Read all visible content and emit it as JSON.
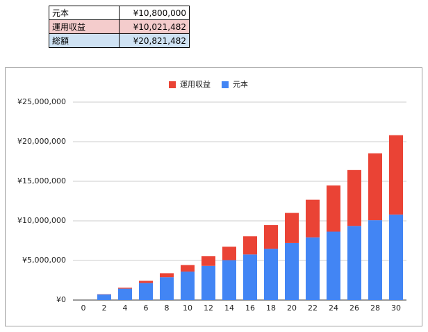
{
  "table": {
    "rows": [
      [
        "元本",
        "¥10,800,000"
      ],
      [
        "運用収益",
        "¥10,021,482"
      ],
      [
        "総額",
        "¥20,821,482"
      ]
    ]
  },
  "chart_data": {
    "type": "stacked_bar",
    "categories": [
      "0",
      "2",
      "4",
      "6",
      "8",
      "10",
      "12",
      "14",
      "16",
      "18",
      "20",
      "22",
      "24",
      "26",
      "28",
      "30"
    ],
    "series": [
      {
        "name": "運用収益",
        "color": "#ea4335",
        "values": [
          0,
          28290,
          118800,
          276700,
          507500,
          817500,
          1213100,
          1701500,
          2290300,
          2987800,
          3803200,
          4746700,
          5828100,
          7059000,
          8452400,
          10021482
        ]
      },
      {
        "name": "元本",
        "color": "#4285f4",
        "values": [
          0,
          720000,
          1440000,
          2160000,
          2880000,
          3600000,
          4320000,
          5040000,
          5760000,
          6480000,
          7200000,
          7920000,
          8640000,
          9360000,
          10080000,
          10800000
        ]
      }
    ],
    "ylim": [
      0,
      25000000
    ],
    "yticks": [
      {
        "value": 0,
        "label": "¥0"
      },
      {
        "value": 5000000,
        "label": "¥5,000,000"
      },
      {
        "value": 10000000,
        "label": "¥10,000,000"
      },
      {
        "value": 15000000,
        "label": "¥15,000,000"
      },
      {
        "value": 20000000,
        "label": "¥20,000,000"
      },
      {
        "value": 25000000,
        "label": "¥25,000,000"
      }
    ],
    "grid": true,
    "legend": "top"
  }
}
